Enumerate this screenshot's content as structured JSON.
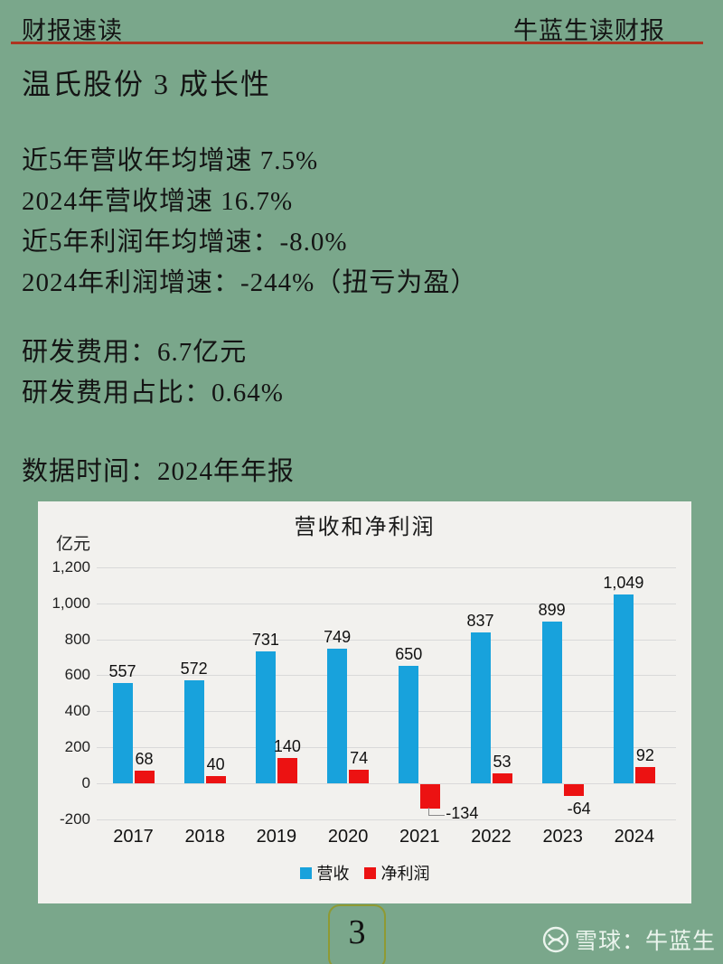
{
  "page": {
    "background": "#7aa78b"
  },
  "header": {
    "left_label": "财报速读",
    "right_label": "牛蓝生读财报",
    "divider_color": "#ae3420"
  },
  "title": "温氏股份 3 成长性",
  "stats": [
    "近5年营收年均增速 7.5%",
    "2024年营收增速 16.7%",
    "近5年利润年均增速：-8.0%",
    "2024年利润增速：-244%（扭亏为盈）"
  ],
  "rnd": [
    "研发费用：6.7亿元",
    "研发费用占比：0.64%"
  ],
  "data_time": "数据时间：2024年年报",
  "chart_data": {
    "type": "bar",
    "title": "营收和净利润",
    "unit_label": "亿元",
    "categories": [
      "2017",
      "2018",
      "2019",
      "2020",
      "2021",
      "2022",
      "2023",
      "2024"
    ],
    "series": [
      {
        "name": "营收",
        "color": "#18a2dc",
        "values": [
          557,
          572,
          731,
          749,
          650,
          837,
          899,
          1049
        ]
      },
      {
        "name": "净利润",
        "color": "#ec1212",
        "values": [
          68,
          40,
          140,
          74,
          -134,
          53,
          -64,
          92
        ]
      }
    ],
    "ylim": [
      -200,
      1200
    ],
    "ytick_step": 200,
    "grid": true,
    "legend_position": "bottom",
    "panel_background": "#f2f1ee"
  },
  "footer": {
    "page_number": "3",
    "watermark_text": "雪球：牛蓝生",
    "watermark_icon": "xueqiu-snowball-icon"
  }
}
